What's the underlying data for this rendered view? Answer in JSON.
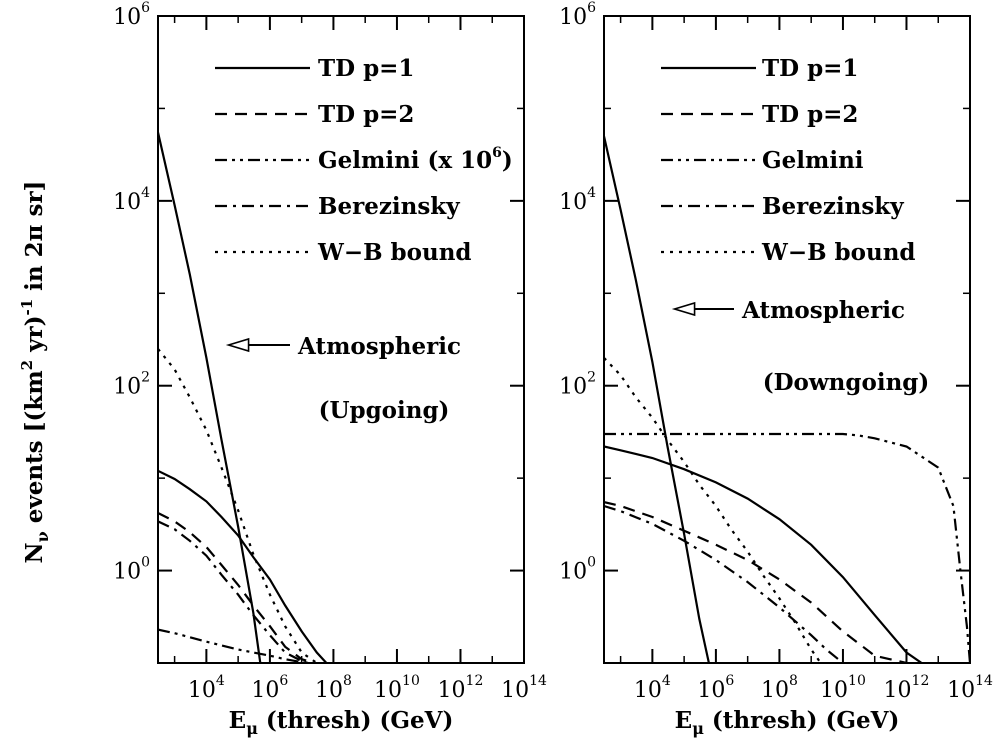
{
  "y_axis_label": "N_ν events [(km² yr)⁻¹ in 2π sr]",
  "y_axis_label_parts": {
    "n": "N",
    "nu": "ν",
    "mid": " events [(km",
    "sq": "2",
    "yr": " yr)",
    "minus1": "-1",
    "in": " in 2",
    "pi": "π",
    "sr": " sr]"
  },
  "chart_data": [
    {
      "type": "line",
      "xscale": "log",
      "yscale": "log",
      "xlim": [
        300,
        100000000000000.0
      ],
      "ylim": [
        0.1,
        1000000.0
      ],
      "xticks": [
        10000.0,
        1000000.0,
        100000000.0,
        10000000000.0,
        1000000000000.0,
        100000000000000.0
      ],
      "yticks": [
        1,
        100,
        10000,
        1000000
      ],
      "xtick_labels": [
        {
          "base": "10",
          "exp": "4"
        },
        {
          "base": "10",
          "exp": "6"
        },
        {
          "base": "10",
          "exp": "8"
        },
        {
          "base": "10",
          "exp": "10"
        },
        {
          "base": "10",
          "exp": "12"
        },
        {
          "base": "10",
          "exp": "14"
        }
      ],
      "ytick_labels": [
        {
          "base": "10",
          "exp": "0"
        },
        {
          "base": "10",
          "exp": "2"
        },
        {
          "base": "10",
          "exp": "4"
        },
        {
          "base": "10",
          "exp": "6"
        }
      ],
      "xlabel": {
        "e": "E",
        "mu": "μ",
        "rest": " (thresh) (GeV)"
      },
      "annotations": [
        {
          "id": "upgoing",
          "text": "(Upgoing)"
        },
        {
          "id": "atm",
          "text": "Atmospheric",
          "arrow_to": [
            50000,
            250
          ]
        }
      ],
      "legend": {
        "placement": "top-right"
      },
      "series": [
        {
          "name": "TD p=1",
          "dash": "solid",
          "x": [
            300,
            1000,
            3000,
            10000,
            30000,
            100000,
            300000,
            1000000.0,
            3000000.0,
            10000000.0,
            30000000.0,
            60000000.0
          ],
          "y": [
            12,
            9.8,
            7.6,
            5.6,
            3.8,
            2.4,
            1.4,
            0.8,
            0.42,
            0.22,
            0.13,
            0.1
          ]
        },
        {
          "name": "TD p=2",
          "dash": "dashed",
          "x": [
            300,
            1000,
            3000,
            10000,
            30000,
            100000,
            300000,
            1000000.0,
            3000000.0,
            10000000.0,
            25000000.0
          ],
          "y": [
            4.2,
            3.4,
            2.6,
            1.8,
            1.15,
            0.7,
            0.42,
            0.25,
            0.15,
            0.11,
            0.1
          ]
        },
        {
          "name": "Gelmini (x 10",
          "name_exp": "6",
          "name_suffix": ")",
          "dash": "dashdotdot",
          "x": [
            300,
            1000,
            3000,
            10000,
            30000,
            100000,
            300000,
            1000000.0,
            3000000.0,
            10000000.0,
            20000000.0
          ],
          "y": [
            0.23,
            0.21,
            0.19,
            0.17,
            0.155,
            0.14,
            0.13,
            0.12,
            0.11,
            0.102,
            0.1
          ]
        },
        {
          "name": "Berezinsky",
          "dash": "dashdot",
          "x": [
            300,
            1000,
            3000,
            10000,
            30000,
            100000,
            300000,
            1000000.0,
            3000000.0,
            10000000.0,
            16000000.0
          ],
          "y": [
            3.4,
            2.8,
            2.1,
            1.45,
            0.9,
            0.55,
            0.33,
            0.2,
            0.13,
            0.105,
            0.1
          ]
        },
        {
          "name": "W−B bound",
          "dash": "dotted",
          "x": [
            300,
            1000,
            3000,
            10000,
            30000,
            100000,
            300000,
            1000000.0,
            3000000.0,
            10000000.0,
            30000000.0
          ],
          "y": [
            250,
            150,
            75,
            33,
            13,
            4.5,
            1.5,
            0.55,
            0.25,
            0.13,
            0.1
          ]
        },
        {
          "name": "Atmospheric",
          "dash": "solid",
          "legend": false,
          "x": [
            300,
            1000,
            3000,
            10000,
            30000,
            100000,
            300000,
            500000
          ],
          "y": [
            55000,
            9000,
            1600,
            200,
            26,
            3,
            0.35,
            0.1
          ]
        }
      ]
    },
    {
      "type": "line",
      "xscale": "log",
      "yscale": "log",
      "xlim": [
        300,
        100000000000000.0
      ],
      "ylim": [
        0.1,
        1000000.0
      ],
      "xticks": [
        10000.0,
        1000000.0,
        100000000.0,
        10000000000.0,
        1000000000000.0,
        100000000000000.0
      ],
      "yticks": [
        1,
        100,
        10000,
        1000000
      ],
      "xtick_labels": [
        {
          "base": "10",
          "exp": "4"
        },
        {
          "base": "10",
          "exp": "6"
        },
        {
          "base": "10",
          "exp": "8"
        },
        {
          "base": "10",
          "exp": "10"
        },
        {
          "base": "10",
          "exp": "12"
        },
        {
          "base": "10",
          "exp": "14"
        }
      ],
      "ytick_labels": [
        {
          "base": "10",
          "exp": "0"
        },
        {
          "base": "10",
          "exp": "2"
        },
        {
          "base": "10",
          "exp": "4"
        },
        {
          "base": "10",
          "exp": "6"
        }
      ],
      "xlabel": {
        "e": "E",
        "mu": "μ",
        "rest": " (thresh) (GeV)"
      },
      "annotations": [
        {
          "id": "downgoing",
          "text": "(Downgoing)"
        },
        {
          "id": "atm",
          "text": "Atmospheric",
          "arrow_to": [
            50000,
            6000
          ]
        }
      ],
      "legend": {
        "placement": "top-right"
      },
      "series": [
        {
          "name": "TD p=1",
          "dash": "solid",
          "x": [
            300,
            1000,
            10000.0,
            100000.0,
            1000000.0,
            10000000.0,
            100000000.0,
            1000000000.0,
            10000000000.0,
            100000000000.0,
            1000000000000.0,
            3000000000000.0
          ],
          "y": [
            22,
            20,
            16.5,
            12.5,
            9,
            6,
            3.6,
            1.9,
            0.85,
            0.33,
            0.13,
            0.1
          ]
        },
        {
          "name": "TD p=2",
          "dash": "dashed",
          "x": [
            300,
            1000,
            10000.0,
            100000.0,
            1000000.0,
            10000000.0,
            100000000.0,
            1000000000.0,
            10000000000.0,
            100000000000.0,
            1000000000000.0
          ],
          "y": [
            5.5,
            5.0,
            3.8,
            2.7,
            1.9,
            1.3,
            0.8,
            0.45,
            0.22,
            0.12,
            0.1
          ]
        },
        {
          "name": "Gelmini",
          "dash": "dashdotdot",
          "x": [
            300,
            1000,
            10000.0,
            100000.0,
            1000000.0,
            10000000.0,
            100000000.0,
            1000000000.0,
            10000000000.0,
            30000000000.0,
            100000000000.0,
            1000000000000.0,
            10000000000000.0,
            30000000000000.0,
            50000000000000.0,
            80000000000000.0,
            100000000000000.0
          ],
          "y": [
            30,
            30,
            30,
            30,
            30,
            30,
            30,
            30,
            30,
            29,
            27,
            22,
            13,
            5,
            1,
            0.25,
            0.1
          ]
        },
        {
          "name": "Berezinsky",
          "dash": "dashdot",
          "x": [
            300,
            1000,
            10000.0,
            100000.0,
            1000000.0,
            10000000.0,
            100000000.0,
            1000000000.0,
            3000000000.0,
            10000000000.0
          ],
          "y": [
            5.0,
            4.4,
            3.2,
            2.1,
            1.3,
            0.75,
            0.4,
            0.2,
            0.14,
            0.1
          ]
        },
        {
          "name": "W−B bound",
          "dash": "dotted",
          "x": [
            300,
            1000,
            3000,
            10000.0,
            30000.0,
            100000.0,
            300000.0,
            1000000.0,
            3000000.0,
            10000000.0,
            30000000.0,
            100000000.0,
            300000000.0,
            1000000000.0,
            2000000000.0
          ],
          "y": [
            200,
            130,
            75,
            45,
            26,
            15,
            8.5,
            5,
            2.8,
            1.6,
            0.9,
            0.5,
            0.28,
            0.14,
            0.1
          ]
        },
        {
          "name": "Atmospheric",
          "dash": "solid",
          "legend": false,
          "x": [
            300,
            1000,
            3000,
            10000,
            30000,
            100000,
            300000,
            600000
          ],
          "y": [
            50000,
            8000,
            1400,
            180,
            22,
            2.5,
            0.3,
            0.1
          ]
        }
      ]
    }
  ]
}
